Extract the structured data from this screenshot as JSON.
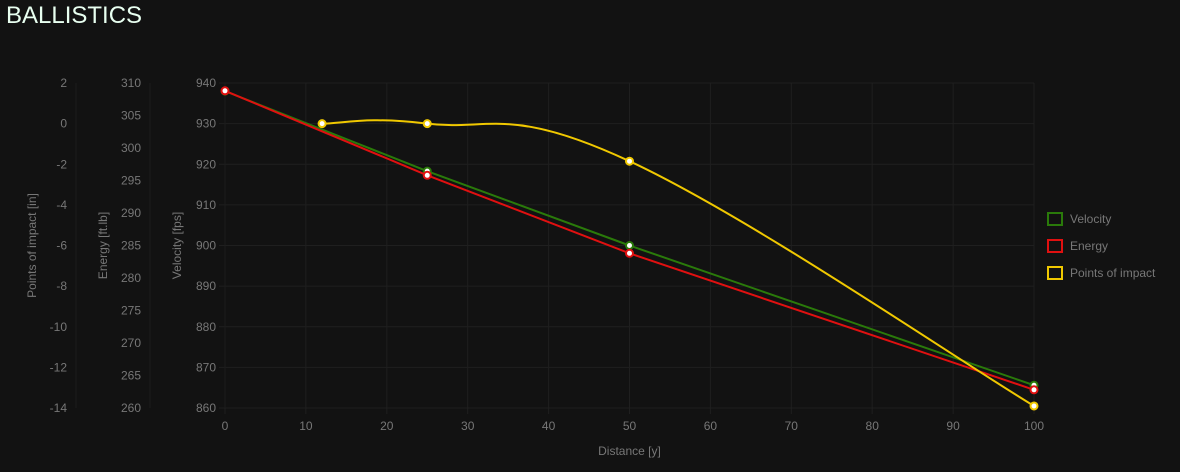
{
  "page": {
    "title": "BALLISTICS"
  },
  "chart_data": {
    "type": "line",
    "xlabel": "Distance [y]",
    "xlim": [
      0,
      100
    ],
    "xticks": [
      0,
      10,
      20,
      30,
      40,
      50,
      60,
      70,
      80,
      90,
      100
    ],
    "grid": true,
    "legend_position": "right",
    "axes": [
      {
        "id": "poi",
        "label": "Points of impact [in]",
        "ylim": [
          -14,
          2
        ],
        "ticks": [
          2,
          0,
          -2,
          -4,
          -6,
          -8,
          -10,
          -12,
          -14
        ]
      },
      {
        "id": "energy",
        "label": "Energy [ft.lb]",
        "ylim": [
          260,
          310
        ],
        "ticks": [
          310,
          305,
          300,
          295,
          290,
          285,
          280,
          275,
          270,
          265,
          260
        ]
      },
      {
        "id": "velocity",
        "label": "Velocity [fps]",
        "ylim": [
          860,
          940
        ],
        "ticks": [
          940,
          930,
          920,
          910,
          900,
          890,
          880,
          870,
          860
        ]
      }
    ],
    "series": [
      {
        "name": "Velocity",
        "axis": "velocity",
        "color": "#2a7a0a",
        "x": [
          0,
          25,
          50,
          100
        ],
        "y": [
          938,
          918.3,
          900,
          865.6
        ],
        "smooth": false
      },
      {
        "name": "Energy",
        "axis": "energy",
        "color": "#e01010",
        "x": [
          0,
          25,
          50,
          100
        ],
        "y": [
          308.8,
          295.8,
          283.8,
          262.8
        ],
        "smooth": false
      },
      {
        "name": "Points of impact",
        "axis": "poi",
        "color": "#f0c800",
        "x": [
          12,
          25,
          50,
          100
        ],
        "y": [
          0,
          0,
          -1.85,
          -13.9
        ],
        "smooth": true
      }
    ]
  }
}
